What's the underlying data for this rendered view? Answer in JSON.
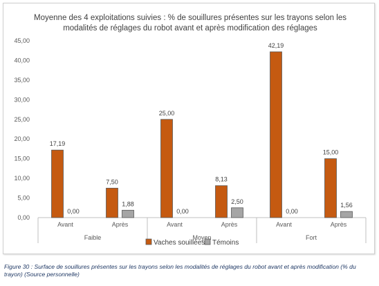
{
  "chart_data": {
    "type": "bar",
    "title": "Moyenne des 4 exploitations suivies : % de souillures présentes sur les trayons selon les modalités de réglages du robot avant et après modification des réglages",
    "xlabel": "",
    "ylabel": "",
    "ylim": [
      0,
      45
    ],
    "yticks": [
      "0,00",
      "5,00",
      "10,00",
      "15,00",
      "20,00",
      "25,00",
      "30,00",
      "35,00",
      "40,00",
      "45,00"
    ],
    "groups": [
      "Faible",
      "Moyen",
      "Fort"
    ],
    "categories": [
      "Avant",
      "Après",
      "Avant",
      "Après",
      "Avant",
      "Après"
    ],
    "series": [
      {
        "name": "Vaches souillées",
        "color": "#c55a11",
        "values": [
          17.19,
          7.5,
          25.0,
          8.13,
          42.19,
          15.0
        ],
        "labels": [
          "17,19",
          "7,50",
          "25,00",
          "8,13",
          "42,19",
          "15,00"
        ]
      },
      {
        "name": "Témoins",
        "color": "#a5a5a5",
        "values": [
          0.0,
          1.88,
          0.0,
          2.5,
          0.0,
          1.56
        ],
        "labels": [
          "0,00",
          "1,88",
          "0,00",
          "2,50",
          "0,00",
          "1,56"
        ]
      }
    ],
    "grid": false,
    "legend": "bottom"
  },
  "caption": "Figure 30 : Surface de souillures présentes sur les trayons selon les modalités de réglages du robot avant et après modification (% du trayon) (Source personnelle)"
}
